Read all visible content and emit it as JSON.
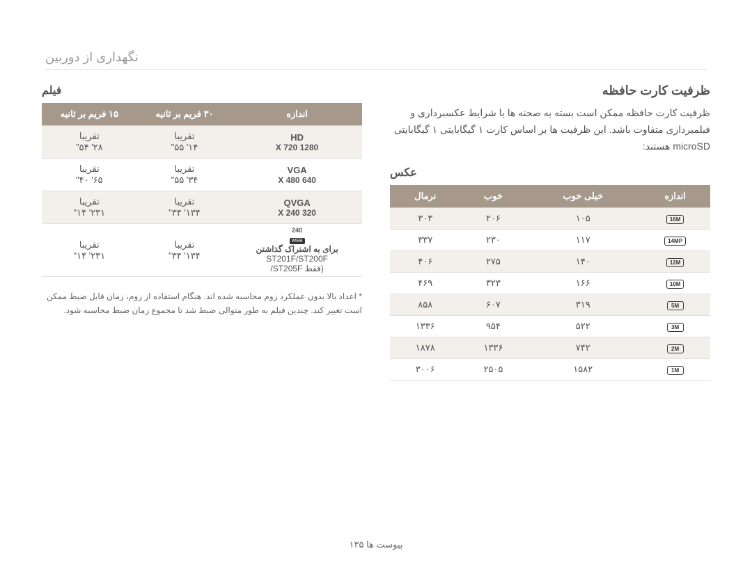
{
  "page_header": "نگهداری از دوربین",
  "capacity": {
    "title": "ظرفیت کارت حافظه",
    "para": "ظرفیت کارت حافظه ممکن است بسته به صحنه ها یا شرایط عکسبرداری و فیلمبرداری متفاوت باشد. این ظرفیت ها بر اساس کارت ۱ گیگابایتی ۱ گیگابایتی microSD هستند:"
  },
  "pics": {
    "title": "عکس",
    "headers": [
      "اندازه",
      "خیلی خوب",
      "خوب",
      "نرمال"
    ],
    "rows": [
      {
        "icon": "16M",
        "v": [
          "۱۰۵",
          "۲۰۶",
          "۳۰۳"
        ],
        "alt": true
      },
      {
        "icon": "14MP",
        "v": [
          "۱۱۷",
          "۲۳۰",
          "۳۳۷"
        ],
        "alt": false
      },
      {
        "icon": "12M",
        "v": [
          "۱۴۰",
          "۲۷۵",
          "۴۰۶"
        ],
        "alt": true
      },
      {
        "icon": "10M",
        "v": [
          "۱۶۶",
          "۳۲۳",
          "۴۶۹"
        ],
        "alt": false
      },
      {
        "icon": "5M",
        "v": [
          "۳۱۹",
          "۶۰۷",
          "۸۵۸"
        ],
        "alt": true
      },
      {
        "icon": "3M",
        "v": [
          "۵۲۲",
          "۹۵۴",
          "۱۳۳۶"
        ],
        "alt": false
      },
      {
        "icon": "2M",
        "v": [
          "۷۴۲",
          "۱۳۳۶",
          "۱۸۷۸"
        ],
        "alt": true
      },
      {
        "icon": "1M",
        "v": [
          "۱۵۸۲",
          "۲۵۰۵",
          "۳۰۰۶"
        ],
        "alt": false
      }
    ]
  },
  "video": {
    "title": "فیلم",
    "headers": [
      "اندازه",
      "۳۰ فریم بر ثانیه",
      "۱۵ فریم بر ثانیه"
    ],
    "rows": [
      {
        "label": "HD",
        "sub": "1280 X 720",
        "f30": "تقریبا",
        "f30b": "۱۴' ۵۵\"",
        "f15": "تقریبا",
        "f15b": "۲۸' ۵۴\"",
        "alt": true
      },
      {
        "label": "VGA",
        "sub": "640 X 480",
        "f30": "تقریبا",
        "f30b": "۳۴' ۵۵\"",
        "f15": "تقریبا",
        "f15b": "۶۵' ۴۰\"",
        "alt": false
      },
      {
        "label": "QVGA",
        "sub": "320 X 240",
        "f30": "تقریبا",
        "f30b": "۱۳۴' ۳۴\"",
        "f15": "تقریبا",
        "f15b": "۲۳۱' ۱۴\"",
        "alt": true
      },
      {
        "label": "",
        "sub": "برای به اشتراک گذاشتن",
        "sub2": "ST201F/ST200F",
        "sub3": "(فقط ST205F/",
        "icon240": true,
        "f30": "تقریبا",
        "f30b": "۱۳۴' ۳۴\"",
        "f15": "تقریبا",
        "f15b": "۲۳۱' ۱۴\"",
        "alt": false
      }
    ]
  },
  "note": "* اعداد بالا بدون عملکرد زوم محاسبه شده اند. هنگام استفاده از زوم، زمان قابل ضبط ممکن است تغییر کند. چندین فیلم به طور متوالی ضبط شد تا مجموع زمان ضبط محاسبه شود.",
  "footer": "پیوست ها  ۱۳۵"
}
